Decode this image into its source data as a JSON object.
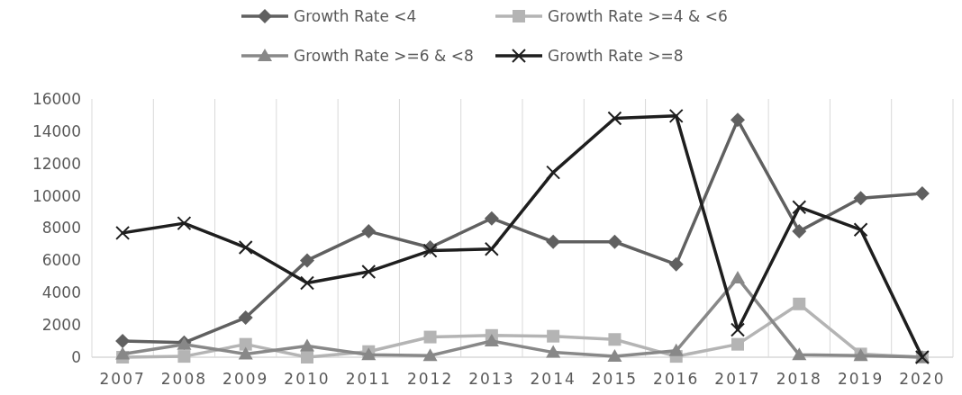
{
  "chart_data": {
    "type": "line",
    "categories": [
      "2007",
      "2008",
      "2009",
      "2010",
      "2011",
      "2012",
      "2013",
      "2014",
      "2015",
      "2016",
      "2017",
      "2018",
      "2019",
      "2020"
    ],
    "series": [
      {
        "name": "Growth Rate <4",
        "color": "#606060",
        "marker": "diamond",
        "values": [
          1000,
          900,
          2450,
          6000,
          7800,
          6800,
          8600,
          7150,
          7150,
          5750,
          14700,
          7800,
          9850,
          10150
        ]
      },
      {
        "name": "Growth Rate >=4 & <6",
        "color": "#b4b4b4",
        "marker": "square",
        "values": [
          0,
          50,
          800,
          0,
          350,
          1250,
          1350,
          1300,
          1100,
          50,
          800,
          3300,
          200,
          0
        ]
      },
      {
        "name": "Growth Rate >=6 & <8",
        "color": "#888888",
        "marker": "triangle",
        "values": [
          200,
          800,
          200,
          700,
          150,
          100,
          1000,
          300,
          50,
          400,
          4900,
          150,
          100,
          0
        ]
      },
      {
        "name": "Growth Rate >=8",
        "color": "#1e1e1e",
        "marker": "cross",
        "values": [
          7700,
          8300,
          6800,
          4600,
          5300,
          6600,
          6700,
          11450,
          14800,
          14950,
          1700,
          9300,
          7900,
          0
        ]
      }
    ],
    "ylim": [
      0,
      16000
    ],
    "yticks": [
      0,
      2000,
      4000,
      6000,
      8000,
      10000,
      12000,
      14000,
      16000
    ],
    "grid": "x",
    "legend": "top"
  }
}
